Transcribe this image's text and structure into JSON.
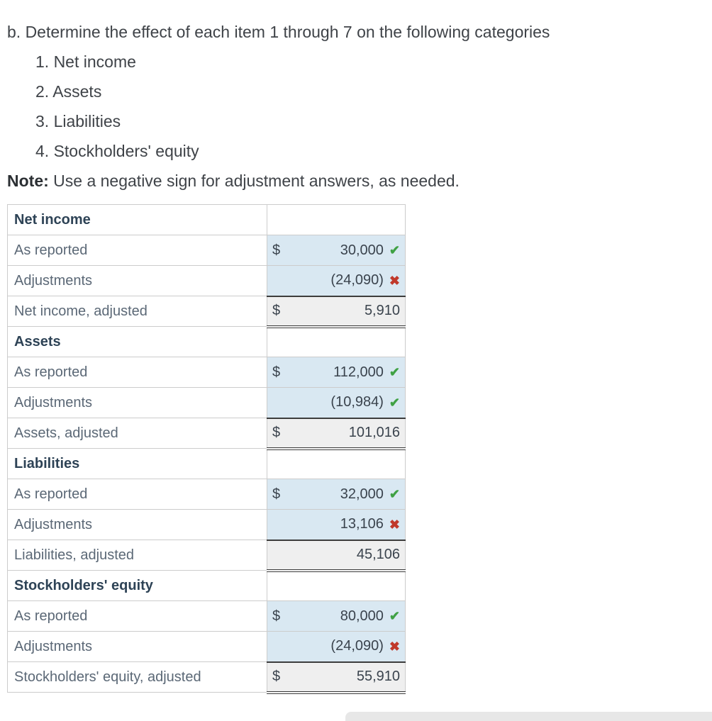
{
  "page": {
    "intro": "b. Determine the effect of each item 1 through 7 on the following categories",
    "list_items": [
      "1. Net income",
      "2. Assets",
      "3. Liabilities",
      "4. Stockholders' equity"
    ],
    "note_label": "Note:",
    "note_text": " Use a negative sign for adjustment answers, as needed."
  },
  "icons": {
    "check": {
      "name": "check-icon",
      "glyph": "✔"
    },
    "x": {
      "name": "x-icon",
      "glyph": "✖"
    }
  },
  "colors": {
    "body_text": "#3f4348",
    "label_text": "#5b6876",
    "header_text": "#2e4356",
    "number_text": "#3a434d",
    "border": "#cccccc",
    "dark_rule": "#3c3c3c",
    "input_bg": "#d9e8f2",
    "total_bg": "#efefef",
    "check_green": "#3fa144",
    "x_red": "#c0392b",
    "partial_bg": "#e7e7e7"
  },
  "table": {
    "sections": [
      {
        "header": "Net income",
        "rows": [
          {
            "label": "As reported",
            "currency": "$",
            "value": "30,000",
            "status": "correct"
          },
          {
            "label": "Adjustments",
            "currency": "",
            "value": "(24,090)",
            "status": "incorrect"
          },
          {
            "label": "Net income, adjusted",
            "currency": "$",
            "value": "5,910",
            "status": "none"
          }
        ]
      },
      {
        "header": "Assets",
        "rows": [
          {
            "label": "As reported",
            "currency": "$",
            "value": "112,000",
            "status": "correct"
          },
          {
            "label": "Adjustments",
            "currency": "",
            "value": "(10,984)",
            "status": "correct"
          },
          {
            "label": "Assets, adjusted",
            "currency": "$",
            "value": "101,016",
            "status": "none"
          }
        ]
      },
      {
        "header": "Liabilities",
        "rows": [
          {
            "label": "As reported",
            "currency": "$",
            "value": "32,000",
            "status": "correct"
          },
          {
            "label": "Adjustments",
            "currency": "",
            "value": "13,106",
            "status": "incorrect"
          },
          {
            "label": "Liabilities, adjusted",
            "currency": "",
            "value": "45,106",
            "status": "none"
          }
        ]
      },
      {
        "header": "Stockholders' equity",
        "rows": [
          {
            "label": "As reported",
            "currency": "$",
            "value": "80,000",
            "status": "correct"
          },
          {
            "label": "Adjustments",
            "currency": "",
            "value": "(24,090)",
            "status": "incorrect"
          },
          {
            "label": "Stockholders' equity, adjusted",
            "currency": "$",
            "value": "55,910",
            "status": "none"
          }
        ]
      }
    ]
  }
}
